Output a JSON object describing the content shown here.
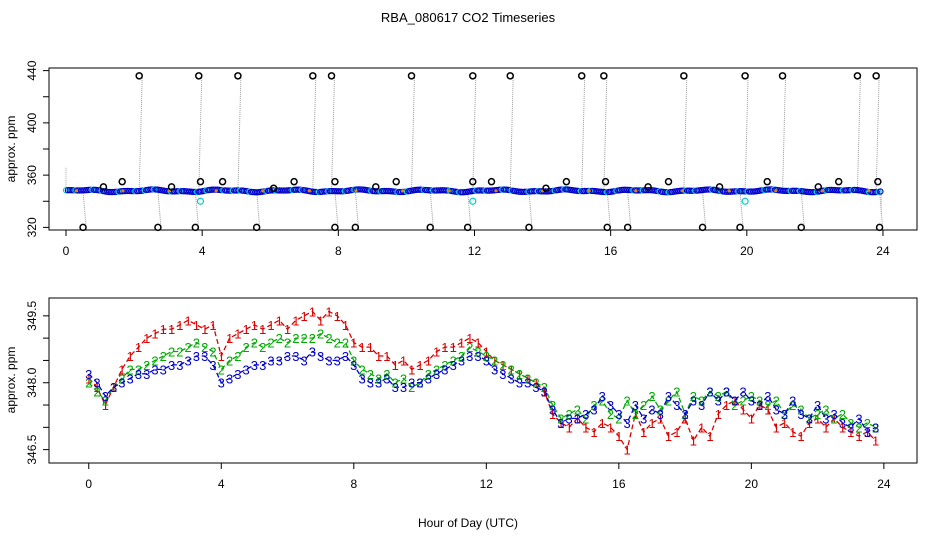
{
  "title": "RBA_080617  CO2 Timeseries",
  "chart_data": [
    {
      "type": "scatter",
      "panel": "top",
      "ylabel": "approx. ppm",
      "xlabel": "",
      "xlim": [
        -0.5,
        25
      ],
      "ylim": [
        318,
        442
      ],
      "xticks": [
        0,
        4,
        8,
        12,
        16,
        20,
        24
      ],
      "yticks": [
        320,
        360,
        400,
        440
      ],
      "yminor": [
        340,
        380,
        420
      ],
      "baseline": 348,
      "series": [
        {
          "name": "base",
          "color": "#0000cc"
        },
        {
          "name": "cyan_points",
          "color": "#00cccc",
          "points": [
            [
              3.95,
              340
            ],
            [
              11.95,
              340
            ],
            [
              19.95,
              340
            ]
          ]
        },
        {
          "name": "high_spikes",
          "color": "#000000",
          "x": [
            2.15,
            3.9,
            5.05,
            7.25,
            7.8,
            10.15,
            11.95,
            13.05,
            15.15,
            15.8,
            18.15,
            19.95,
            21.05,
            23.25,
            23.8
          ],
          "y": 436
        },
        {
          "name": "low_spikes",
          "color": "#000000",
          "x": [
            0.5,
            2.7,
            3.8,
            5.6,
            7.9,
            8.5,
            10.7,
            11.8,
            13.6,
            15.9,
            16.5,
            18.7,
            19.8,
            21.6,
            23.9
          ],
          "y": 320
        },
        {
          "name": "mid_points",
          "color": "#000000",
          "points": [
            [
              1.1,
              351
            ],
            [
              1.65,
              355
            ],
            [
              3.1,
              351
            ],
            [
              3.95,
              355
            ],
            [
              4.6,
              355
            ],
            [
              6.1,
              350
            ],
            [
              6.7,
              355
            ],
            [
              7.9,
              355
            ],
            [
              9.1,
              351
            ],
            [
              9.7,
              355
            ],
            [
              11.95,
              355
            ],
            [
              12.5,
              355
            ],
            [
              14.1,
              350
            ],
            [
              14.7,
              355
            ],
            [
              15.85,
              355
            ],
            [
              17.1,
              351
            ],
            [
              17.7,
              355
            ],
            [
              19.2,
              351
            ],
            [
              20.6,
              355
            ],
            [
              22.1,
              351
            ],
            [
              22.7,
              355
            ],
            [
              23.85,
              355
            ]
          ]
        }
      ]
    },
    {
      "type": "line",
      "panel": "bottom",
      "ylabel": "approx. ppm",
      "xlabel": "Hour of Day (UTC)",
      "xlim": [
        -1.2,
        25
      ],
      "ylim": [
        346.2,
        349.9
      ],
      "xticks": [
        0,
        4,
        8,
        12,
        16,
        20,
        24
      ],
      "yticks": [
        346.5,
        348.0,
        349.5
      ],
      "yminor": [
        347.0,
        347.5,
        348.5,
        349.0
      ],
      "series": [
        {
          "name": "1",
          "color": "#dd0000",
          "x": [
            0.0,
            0.25,
            0.5,
            0.75,
            1.0,
            1.25,
            1.5,
            1.75,
            2.0,
            2.25,
            2.5,
            2.75,
            3.0,
            3.25,
            3.5,
            3.75,
            4.0,
            4.25,
            4.5,
            4.75,
            5.0,
            5.25,
            5.5,
            5.75,
            6.0,
            6.25,
            6.5,
            6.75,
            7.0,
            7.25,
            7.5,
            7.75,
            8.0,
            8.25,
            8.5,
            8.75,
            9.0,
            9.25,
            9.5,
            9.75,
            10.0,
            10.25,
            10.5,
            10.75,
            11.0,
            11.25,
            11.5,
            11.75,
            12.0,
            12.25,
            12.5,
            12.75,
            13.0,
            13.25,
            13.5,
            13.75,
            14.0,
            14.25,
            14.5,
            14.75,
            15.0,
            15.25,
            15.5,
            15.75,
            16.0,
            16.25,
            16.5,
            16.75,
            17.0,
            17.25,
            17.5,
            17.75,
            18.0,
            18.25,
            18.5,
            18.75,
            19.0,
            19.25,
            19.5,
            19.75,
            20.0,
            20.25,
            20.5,
            20.75,
            21.0,
            21.25,
            21.5,
            21.75,
            22.0,
            22.25,
            22.5,
            22.75,
            23.0,
            23.25,
            23.5,
            23.75
          ],
          "values": [
            348.1,
            347.9,
            347.5,
            347.9,
            348.3,
            348.6,
            348.8,
            349.0,
            349.1,
            349.2,
            349.2,
            349.3,
            349.4,
            349.3,
            349.2,
            349.3,
            348.6,
            349.0,
            349.1,
            349.2,
            349.3,
            349.2,
            349.3,
            349.4,
            349.2,
            349.4,
            349.5,
            349.6,
            349.4,
            349.6,
            349.5,
            349.3,
            348.9,
            348.8,
            348.8,
            348.6,
            348.6,
            348.4,
            348.5,
            348.3,
            348.4,
            348.5,
            348.7,
            348.8,
            348.8,
            348.9,
            349.0,
            348.9,
            348.7,
            348.5,
            348.4,
            348.3,
            348.2,
            348.1,
            348.0,
            347.8,
            347.3,
            347.1,
            347.0,
            347.2,
            347.0,
            346.9,
            347.1,
            347.0,
            346.8,
            346.5,
            347.3,
            346.9,
            347.1,
            347.2,
            346.8,
            346.9,
            347.2,
            346.7,
            347.0,
            346.8,
            347.3,
            347.5,
            347.6,
            347.4,
            347.2,
            347.5,
            347.4,
            347.0,
            347.1,
            346.9,
            346.8,
            347.1,
            347.2,
            347.0,
            347.2,
            347.0,
            346.9,
            346.8,
            346.9,
            346.7
          ]
        },
        {
          "name": "2",
          "color": "#00aa00",
          "x": [
            0.0,
            0.25,
            0.5,
            0.75,
            1.0,
            1.25,
            1.5,
            1.75,
            2.0,
            2.25,
            2.5,
            2.75,
            3.0,
            3.25,
            3.5,
            3.75,
            4.0,
            4.25,
            4.5,
            4.75,
            5.0,
            5.25,
            5.5,
            5.75,
            6.0,
            6.25,
            6.5,
            6.75,
            7.0,
            7.25,
            7.5,
            7.75,
            8.0,
            8.25,
            8.5,
            8.75,
            9.0,
            9.25,
            9.5,
            9.75,
            10.0,
            10.25,
            10.5,
            10.75,
            11.0,
            11.25,
            11.5,
            11.75,
            12.0,
            12.25,
            12.5,
            12.75,
            13.0,
            13.25,
            13.5,
            13.75,
            14.0,
            14.25,
            14.5,
            14.75,
            15.0,
            15.25,
            15.5,
            15.75,
            16.0,
            16.25,
            16.5,
            16.75,
            17.0,
            17.25,
            17.5,
            17.75,
            18.0,
            18.25,
            18.5,
            18.75,
            19.0,
            19.25,
            19.5,
            19.75,
            20.0,
            20.25,
            20.5,
            20.75,
            21.0,
            21.25,
            21.5,
            21.75,
            22.0,
            22.25,
            22.5,
            22.75,
            23.0,
            23.25,
            23.5,
            23.75
          ],
          "values": [
            348.0,
            347.8,
            347.6,
            347.9,
            348.1,
            348.3,
            348.3,
            348.4,
            348.5,
            348.6,
            348.7,
            348.7,
            348.8,
            348.9,
            348.8,
            348.7,
            348.3,
            348.5,
            348.6,
            348.8,
            348.9,
            348.8,
            348.9,
            349.0,
            348.9,
            349.0,
            349.0,
            349.0,
            349.1,
            349.0,
            348.9,
            348.9,
            348.5,
            348.3,
            348.2,
            348.1,
            348.2,
            348.0,
            348.1,
            347.9,
            348.0,
            348.2,
            348.3,
            348.4,
            348.5,
            348.6,
            348.8,
            348.7,
            348.6,
            348.5,
            348.4,
            348.3,
            348.2,
            348.1,
            348.0,
            347.9,
            347.5,
            347.2,
            347.3,
            347.4,
            347.2,
            347.5,
            347.6,
            347.3,
            347.2,
            347.6,
            347.3,
            347.5,
            347.7,
            347.4,
            347.6,
            347.8,
            347.3,
            347.7,
            347.6,
            347.8,
            347.7,
            347.8,
            347.5,
            347.6,
            347.7,
            347.6,
            347.5,
            347.6,
            347.3,
            347.5,
            347.4,
            347.2,
            347.3,
            347.4,
            347.2,
            347.3,
            347.1,
            347.0,
            347.1,
            347.0
          ]
        },
        {
          "name": "3",
          "color": "#0000cc",
          "x": [
            0.0,
            0.25,
            0.5,
            0.75,
            1.0,
            1.25,
            1.5,
            1.75,
            2.0,
            2.25,
            2.5,
            2.75,
            3.0,
            3.25,
            3.5,
            3.75,
            4.0,
            4.25,
            4.5,
            4.75,
            5.0,
            5.25,
            5.5,
            5.75,
            6.0,
            6.25,
            6.5,
            6.75,
            7.0,
            7.25,
            7.5,
            7.75,
            8.0,
            8.25,
            8.5,
            8.75,
            9.0,
            9.25,
            9.5,
            9.75,
            10.0,
            10.25,
            10.5,
            10.75,
            11.0,
            11.25,
            11.5,
            11.75,
            12.0,
            12.25,
            12.5,
            12.75,
            13.0,
            13.25,
            13.5,
            13.75,
            14.0,
            14.25,
            14.5,
            14.75,
            15.0,
            15.25,
            15.5,
            15.75,
            16.0,
            16.25,
            16.5,
            16.75,
            17.0,
            17.25,
            17.5,
            17.75,
            18.0,
            18.25,
            18.5,
            18.75,
            19.0,
            19.25,
            19.5,
            19.75,
            20.0,
            20.25,
            20.5,
            20.75,
            21.0,
            21.25,
            21.5,
            21.75,
            22.0,
            22.25,
            22.5,
            22.75,
            23.0,
            23.25,
            23.5,
            23.75
          ],
          "values": [
            348.2,
            348.0,
            347.7,
            347.9,
            348.0,
            348.1,
            348.2,
            348.2,
            348.3,
            348.3,
            348.4,
            348.4,
            348.5,
            348.6,
            348.6,
            348.4,
            348.0,
            348.1,
            348.2,
            348.3,
            348.4,
            348.4,
            348.5,
            348.5,
            348.6,
            348.6,
            348.5,
            348.7,
            348.6,
            348.5,
            348.5,
            348.6,
            348.4,
            348.1,
            348.0,
            348.0,
            348.1,
            347.9,
            347.9,
            348.0,
            348.0,
            348.1,
            348.2,
            348.3,
            348.4,
            348.5,
            348.6,
            348.6,
            348.5,
            348.3,
            348.2,
            348.1,
            348.0,
            348.0,
            347.9,
            347.8,
            347.4,
            347.1,
            347.2,
            347.2,
            347.3,
            347.4,
            347.7,
            347.5,
            347.3,
            347.1,
            347.5,
            347.2,
            347.4,
            347.3,
            347.7,
            347.5,
            347.3,
            347.6,
            347.5,
            347.8,
            347.6,
            347.8,
            347.6,
            347.8,
            347.6,
            347.5,
            347.7,
            347.4,
            347.3,
            347.6,
            347.3,
            347.2,
            347.5,
            347.2,
            347.3,
            347.1,
            347.0,
            347.2,
            346.9,
            347.0
          ]
        }
      ]
    }
  ]
}
